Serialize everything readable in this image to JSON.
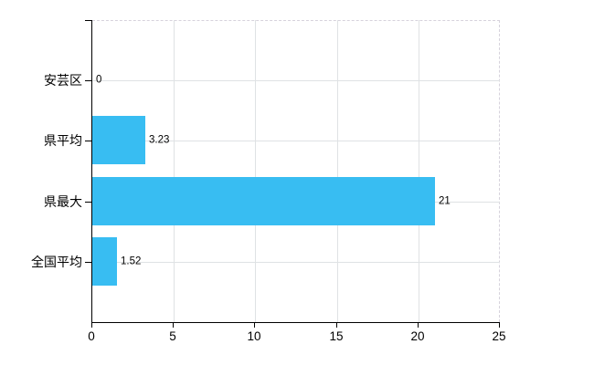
{
  "chart_data": {
    "type": "bar",
    "orientation": "horizontal",
    "title": "",
    "xlabel": "",
    "ylabel": "",
    "categories": [
      "安芸区",
      "県平均",
      "県最大",
      "全国平均"
    ],
    "values": [
      0,
      3.23,
      21,
      1.52
    ],
    "value_labels": [
      "0",
      "3.23",
      "21",
      "1.52"
    ],
    "x_ticks": [
      0,
      5,
      10,
      15,
      20,
      25
    ],
    "x_tick_labels": [
      "0",
      "5",
      "10",
      "15",
      "20",
      "25"
    ],
    "xlim": [
      0,
      25
    ],
    "grid": true,
    "legend": false,
    "colors": {
      "bar": "#38bdf2",
      "grid_solid": "#dfe2e4",
      "grid_dashed_border": "#d6d2dc",
      "axis": "#000000",
      "text": "#000000",
      "background": "#ffffff"
    }
  }
}
